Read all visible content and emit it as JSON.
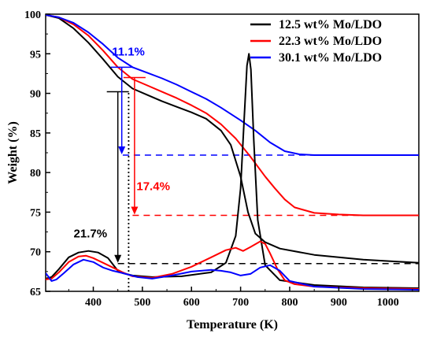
{
  "chart_data": {
    "type": "line",
    "title": "",
    "xlabel": "Temperature (K)",
    "ylabel": "Weight (%)",
    "xlim": [
      303,
      1063
    ],
    "ylim": [
      65,
      100
    ],
    "xticks": [
      400,
      500,
      600,
      700,
      800,
      900,
      1000
    ],
    "yticks": [
      65,
      70,
      75,
      80,
      85,
      90,
      95,
      100
    ],
    "grid": false,
    "legend_position": "top-right",
    "series": [
      {
        "name": "12.5 wt% Mo/LDO",
        "color": "#000000",
        "kind": "weight",
        "x": [
          303,
          330,
          360,
          390,
          420,
          450,
          480,
          510,
          540,
          570,
          600,
          630,
          660,
          680,
          700,
          715,
          730,
          750,
          780,
          850,
          950,
          1063
        ],
        "y": [
          99.9,
          99.5,
          98.2,
          96.4,
          94.3,
          92.1,
          90.6,
          89.8,
          89.0,
          88.3,
          87.6,
          86.8,
          85.3,
          83.5,
          79.5,
          75.0,
          72.3,
          71.2,
          70.4,
          69.6,
          69.0,
          68.6
        ]
      },
      {
        "name": "22.3 wt% Mo/LDO",
        "color": "#ff0000",
        "kind": "weight",
        "x": [
          303,
          330,
          360,
          390,
          420,
          450,
          480,
          510,
          540,
          570,
          600,
          630,
          660,
          690,
          720,
          750,
          770,
          790,
          810,
          850,
          900,
          950,
          1063
        ],
        "y": [
          99.9,
          99.6,
          98.7,
          97.3,
          95.4,
          93.3,
          91.8,
          91.0,
          90.2,
          89.4,
          88.5,
          87.5,
          86.1,
          84.3,
          82.0,
          79.5,
          78.0,
          76.6,
          75.6,
          74.9,
          74.7,
          74.6,
          74.6
        ]
      },
      {
        "name": "30.1 wt% Mo/LDO",
        "color": "#0000ff",
        "kind": "weight",
        "x": [
          303,
          330,
          360,
          390,
          420,
          450,
          480,
          510,
          540,
          570,
          600,
          630,
          660,
          700,
          730,
          760,
          790,
          820,
          850,
          900,
          1000,
          1063
        ],
        "y": [
          99.9,
          99.6,
          98.9,
          97.7,
          96.2,
          94.5,
          93.3,
          92.6,
          91.9,
          91.1,
          90.2,
          89.3,
          88.2,
          86.6,
          85.3,
          83.8,
          82.7,
          82.3,
          82.2,
          82.2,
          82.2,
          82.2
        ]
      },
      {
        "name": "",
        "color": "#000000",
        "kind": "derivative",
        "x": [
          303,
          315,
          330,
          350,
          370,
          390,
          410,
          430,
          440,
          450,
          460,
          480,
          520,
          580,
          640,
          670,
          690,
          700,
          707,
          713,
          717,
          721,
          727,
          735,
          750,
          780,
          850,
          950,
          1063
        ],
        "y": [
          66.6,
          66.8,
          67.8,
          69.3,
          69.9,
          70.1,
          69.9,
          69.2,
          68.4,
          67.6,
          67.3,
          67.0,
          66.8,
          66.9,
          67.4,
          68.6,
          72.0,
          78.0,
          86.5,
          93.5,
          95.0,
          93.0,
          84.0,
          74.0,
          68.3,
          66.4,
          65.8,
          65.5,
          65.4
        ]
      },
      {
        "name": "",
        "color": "#ff0000",
        "kind": "derivative",
        "x": [
          303,
          315,
          330,
          350,
          370,
          385,
          400,
          420,
          440,
          460,
          480,
          520,
          560,
          600,
          640,
          670,
          690,
          705,
          720,
          740,
          750,
          760,
          775,
          790,
          810,
          850,
          950,
          1063
        ],
        "y": [
          66.5,
          66.6,
          67.4,
          68.7,
          69.4,
          69.5,
          69.2,
          68.6,
          68.0,
          67.4,
          66.9,
          66.7,
          67.2,
          68.1,
          69.3,
          70.2,
          70.5,
          70.1,
          70.6,
          71.3,
          71.0,
          69.8,
          67.8,
          66.4,
          65.9,
          65.6,
          65.4,
          65.3
        ]
      },
      {
        "name": "",
        "color": "#0000ff",
        "kind": "derivative",
        "x": [
          303,
          308,
          315,
          325,
          340,
          360,
          380,
          400,
          420,
          440,
          460,
          490,
          520,
          560,
          600,
          640,
          660,
          680,
          700,
          720,
          740,
          760,
          780,
          800,
          850,
          950,
          1063
        ],
        "y": [
          67.3,
          66.9,
          66.3,
          66.5,
          67.3,
          68.4,
          69.0,
          68.7,
          68.0,
          67.6,
          67.3,
          66.8,
          66.6,
          67.0,
          67.5,
          67.7,
          67.6,
          67.4,
          67.0,
          67.2,
          68.0,
          68.3,
          67.6,
          66.3,
          65.6,
          65.3,
          65.2
        ]
      }
    ],
    "reference_lines": [
      {
        "color": "#000000",
        "type": "horizontal-dashed",
        "y": 68.5,
        "x_start": 450,
        "x_end": 1063
      },
      {
        "color": "#ff0000",
        "type": "horizontal-dashed",
        "y": 74.6,
        "x_start": 480,
        "x_end": 1063
      },
      {
        "color": "#0000ff",
        "type": "horizontal-dashed",
        "y": 82.2,
        "x_start": 460,
        "x_end": 1063
      },
      {
        "color": "#000000",
        "type": "vertical-dotted",
        "x": 472,
        "y_start": 65,
        "y_end": 90.3
      }
    ],
    "annotations": [
      {
        "text": "21.7%",
        "color": "#000000",
        "x": 360,
        "y": 71.8,
        "arrow_x": 450,
        "arrow_from_y": 90.2,
        "arrow_to_y": 68.6
      },
      {
        "text": "17.4%",
        "color": "#ff0000",
        "x": 488,
        "y": 77.8,
        "arrow_x": 484,
        "arrow_from_y": 92.0,
        "arrow_to_y": 74.7
      },
      {
        "text": "11.1%",
        "color": "#0000ff",
        "x": 438,
        "y": 94.8,
        "arrow_x": 458,
        "arrow_from_y": 93.3,
        "arrow_to_y": 82.3
      }
    ]
  }
}
